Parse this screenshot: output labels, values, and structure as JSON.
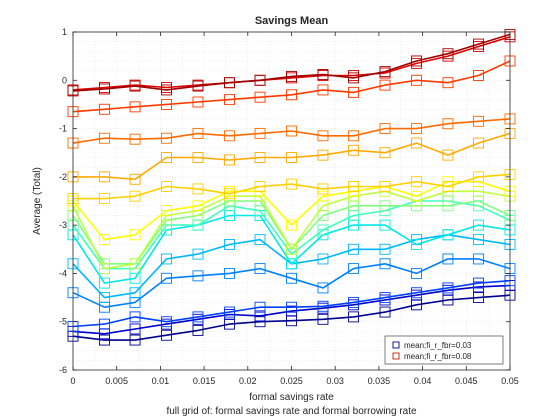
{
  "chart_data": {
    "type": "line",
    "title": "Savings Mean",
    "xlabel": "formal savings rate",
    "ylabel": "Average (Total)",
    "caption": "full grid of: formal savings rate and formal borrowing rate",
    "xlim": [
      0,
      0.05
    ],
    "ylim": [
      -6,
      1
    ],
    "xticks": [
      "0",
      "0.005",
      "0.01",
      "0.015",
      "0.02",
      "0.025",
      "0.03",
      "0.035",
      "0.04",
      "0.045",
      "0.05"
    ],
    "yticks": [
      "-6",
      "-5",
      "-4",
      "-3",
      "-2",
      "-1",
      "0",
      "1"
    ],
    "grid": true,
    "legend_position": "bottom-right",
    "legend": [
      {
        "label": "mean;fi_r_fbr=0.03",
        "color": "#00008f"
      },
      {
        "label": "mean;fi_r_fbr=0.08",
        "color": "#cc2200"
      }
    ],
    "x": [
      0,
      0.0036,
      0.0071,
      0.0107,
      0.0143,
      0.0179,
      0.0214,
      0.025,
      0.0286,
      0.0321,
      0.0357,
      0.0393,
      0.0429,
      0.0464,
      0.05
    ],
    "series": [
      {
        "color": "#00008f",
        "values": [
          -5.3,
          -5.38,
          -5.38,
          -5.28,
          -5.18,
          -5.05,
          -5.0,
          -4.98,
          -4.95,
          -4.9,
          -4.8,
          -4.65,
          -4.55,
          -4.5,
          -4.45
        ]
      },
      {
        "color": "#0000cc",
        "values": [
          -5.2,
          -5.25,
          -5.15,
          -5.05,
          -4.95,
          -4.85,
          -4.88,
          -4.78,
          -4.72,
          -4.65,
          -4.55,
          -4.45,
          -4.35,
          -4.28,
          -4.25
        ]
      },
      {
        "color": "#0040ff",
        "values": [
          -5.1,
          -5.05,
          -4.9,
          -5.0,
          -4.9,
          -4.8,
          -4.7,
          -4.7,
          -4.68,
          -4.6,
          -4.5,
          -4.4,
          -4.3,
          -4.2,
          -4.15
        ]
      },
      {
        "color": "#0080ff",
        "values": [
          -4.4,
          -4.7,
          -4.6,
          -4.1,
          -4.05,
          -4.0,
          -3.9,
          -4.1,
          -4.3,
          -3.9,
          -3.8,
          -4.0,
          -3.7,
          -3.7,
          -3.9
        ]
      },
      {
        "color": "#00b8ff",
        "values": [
          -3.8,
          -4.5,
          -4.4,
          -3.7,
          -3.6,
          -3.4,
          -3.3,
          -3.8,
          -3.7,
          -3.5,
          -3.5,
          -3.3,
          -3.2,
          -3.3,
          -3.4
        ]
      },
      {
        "color": "#00e8e8",
        "values": [
          -3.2,
          -4.2,
          -4.1,
          -3.1,
          -3.0,
          -2.8,
          -2.8,
          -3.8,
          -3.2,
          -3.0,
          -3.0,
          -3.4,
          -3.2,
          -3.0,
          -3.1
        ]
      },
      {
        "color": "#40ffbf",
        "values": [
          -3.0,
          -3.9,
          -3.9,
          -3.0,
          -3.0,
          -2.6,
          -2.7,
          -3.6,
          -3.1,
          -2.8,
          -2.7,
          -2.5,
          -2.5,
          -2.6,
          -2.9
        ]
      },
      {
        "color": "#80ff80",
        "values": [
          -2.8,
          -3.8,
          -3.8,
          -2.9,
          -2.8,
          -2.5,
          -2.5,
          -3.5,
          -2.8,
          -2.6,
          -2.6,
          -2.6,
          -2.6,
          -2.5,
          -2.8
        ]
      },
      {
        "color": "#bfff40",
        "values": [
          -2.6,
          -3.9,
          -3.8,
          -2.8,
          -2.7,
          -2.4,
          -2.4,
          -3.5,
          -2.6,
          -2.4,
          -2.3,
          -2.5,
          -2.3,
          -2.3,
          -2.4
        ]
      },
      {
        "color": "#ffff00",
        "values": [
          -2.5,
          -3.3,
          -3.2,
          -2.7,
          -2.6,
          -2.3,
          -2.3,
          -3.0,
          -2.4,
          -2.3,
          -2.2,
          -2.4,
          -2.1,
          -2.1,
          -2.3
        ]
      },
      {
        "color": "#ffd000",
        "values": [
          -2.45,
          -2.45,
          -2.4,
          -2.2,
          -2.25,
          -2.35,
          -2.2,
          -2.15,
          -2.25,
          -2.2,
          -2.2,
          -2.1,
          -2.2,
          -2.0,
          -1.95
        ]
      },
      {
        "color": "#ffaa00",
        "values": [
          -2.0,
          -2.0,
          -2.05,
          -1.6,
          -1.6,
          -1.65,
          -1.6,
          -1.6,
          -1.55,
          -1.45,
          -1.5,
          -1.3,
          -1.55,
          -1.3,
          -1.1
        ]
      },
      {
        "color": "#ff6a00",
        "values": [
          -1.3,
          -1.2,
          -1.22,
          -1.2,
          -1.1,
          -1.15,
          -1.1,
          -1.05,
          -1.15,
          -1.15,
          -1.0,
          -1.0,
          -0.9,
          -0.85,
          -0.8
        ]
      },
      {
        "color": "#ff3a00",
        "values": [
          -0.65,
          -0.6,
          -0.55,
          -0.5,
          -0.45,
          -0.4,
          -0.35,
          -0.3,
          -0.2,
          -0.25,
          -0.1,
          0.0,
          -0.05,
          0.1,
          0.4
        ]
      },
      {
        "color": "#dd0000",
        "values": [
          -0.2,
          -0.15,
          -0.1,
          -0.15,
          -0.1,
          -0.05,
          0.0,
          0.05,
          0.1,
          0.1,
          0.15,
          0.35,
          0.5,
          0.7,
          0.9
        ]
      },
      {
        "color": "#a00000",
        "values": [
          -0.22,
          -0.18,
          -0.12,
          -0.2,
          -0.12,
          -0.05,
          0.0,
          0.08,
          0.12,
          0.05,
          0.18,
          0.4,
          0.55,
          0.75,
          0.95
        ]
      }
    ]
  }
}
